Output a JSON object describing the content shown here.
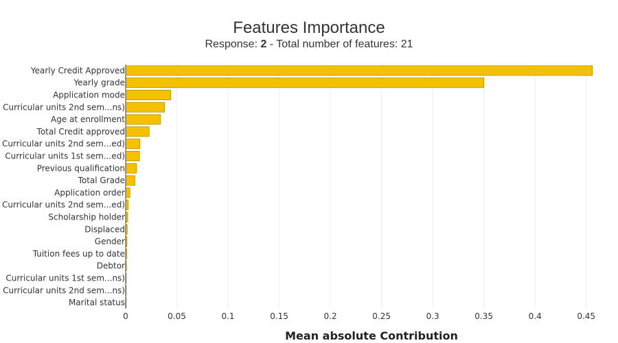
{
  "chart_data": {
    "type": "bar",
    "orientation": "horizontal",
    "title": "Features Importance",
    "subtitle": {
      "prefix": "Response: ",
      "response": "2",
      "suffix": " - Total number of features: 21"
    },
    "xlabel": "Mean absolute Contribution",
    "ylabel": "",
    "xlim": [
      0,
      0.4616
    ],
    "xticks": [
      0,
      0.05,
      0.1,
      0.15,
      0.2,
      0.25,
      0.3,
      0.35,
      0.4,
      0.45
    ],
    "xtick_labels": [
      "0",
      "0.05",
      "0.1",
      "0.15",
      "0.2",
      "0.25",
      "0.3",
      "0.35",
      "0.4",
      "0.45"
    ],
    "grid": true,
    "bar_color": "#f5c000",
    "bar_edge_color": "#a88a00",
    "categories": [
      "Yearly Credit Approved",
      "Yearly grade",
      "Application mode",
      "Curricular units 2nd sem...ns)",
      "Age at enrollment",
      "Total Credit approved",
      "Curricular units 2nd sem...ed)",
      "Curricular units 1st sem...ed)",
      "Previous qualification",
      "Total Grade",
      "Application order",
      "Curricular units 2nd sem...ed)",
      "Scholarship holder",
      "Displaced",
      "Gender",
      "Tuition fees up to date",
      "Debtor",
      "Curricular units 1st sem...ns)",
      "Curricular units 2nd sem...ns)",
      "Marital status"
    ],
    "values": [
      0.456,
      0.35,
      0.044,
      0.038,
      0.034,
      0.023,
      0.014,
      0.0135,
      0.0105,
      0.009,
      0.0042,
      0.0025,
      0.002,
      0.0015,
      0.0012,
      0.001,
      0.0007,
      0.0006,
      0.0005,
      0.0004
    ]
  }
}
